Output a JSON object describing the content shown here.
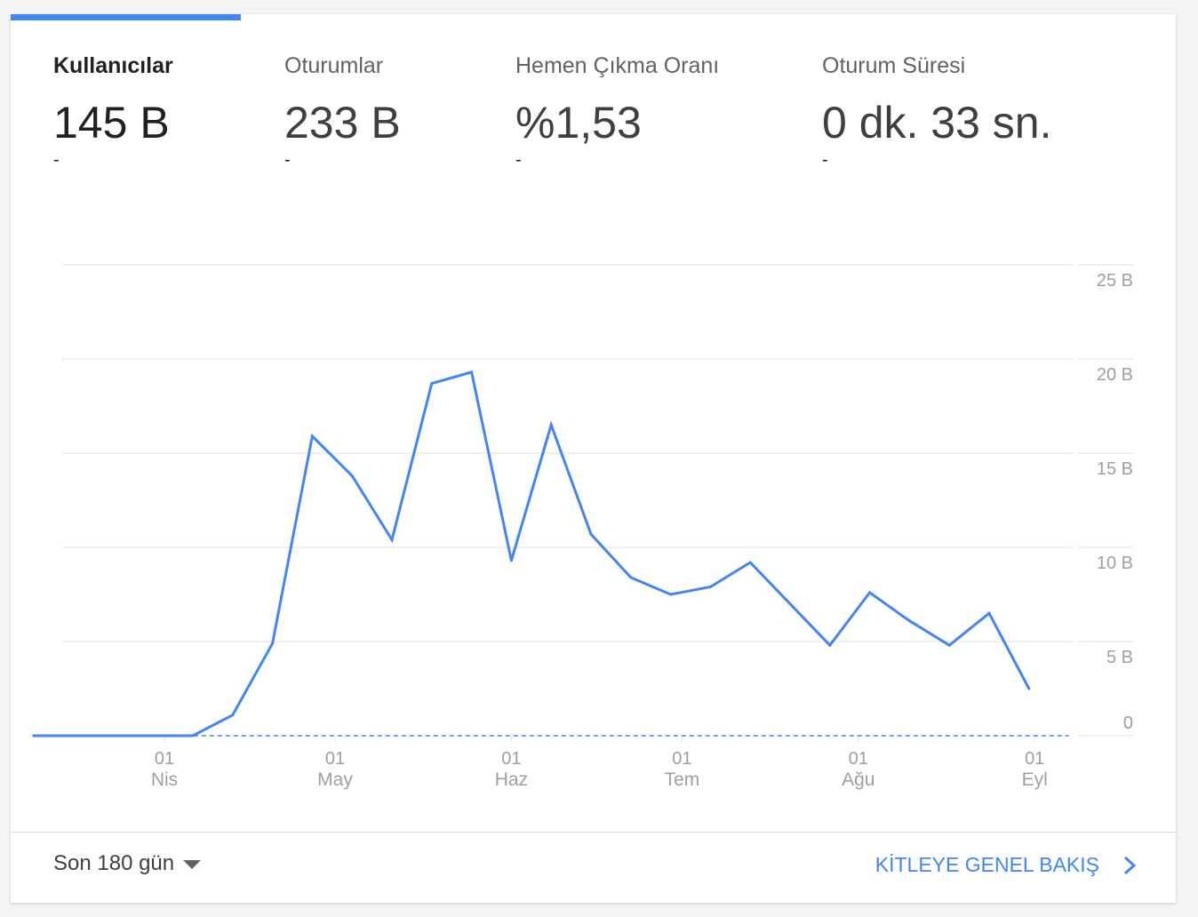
{
  "metrics": [
    {
      "label": "Kullanıcılar",
      "value": "145 B",
      "change": "-"
    },
    {
      "label": "Oturumlar",
      "value": "233 B",
      "change": "-"
    },
    {
      "label": "Hemen Çıkma Oranı",
      "value": "%1,53",
      "change": "-"
    },
    {
      "label": "Oturum Süresi",
      "value": "0 dk. 33 sn.",
      "change": "-"
    }
  ],
  "footer": {
    "date_range": "Son 180 gün",
    "report_link": "KİTLEYE GENEL BAKIŞ"
  },
  "icons": {
    "dropdown": "caret-down-icon",
    "link": "chevron-right-icon"
  },
  "colors": {
    "accent": "#4285f4",
    "line": "#4285f4",
    "grid": "#e0e0e0",
    "axis_text": "#9aa0a6"
  },
  "chart_data": {
    "type": "line",
    "x_axis": "date",
    "x_ticks": [
      {
        "date": "2020-04-01",
        "day": "01",
        "month": "Nis"
      },
      {
        "date": "2020-05-01",
        "day": "01",
        "month": "May"
      },
      {
        "date": "2020-06-01",
        "day": "01",
        "month": "Haz"
      },
      {
        "date": "2020-07-01",
        "day": "01",
        "month": "Tem"
      },
      {
        "date": "2020-08-01",
        "day": "01",
        "month": "Ağu"
      },
      {
        "date": "2020-09-01",
        "day": "01",
        "month": "Eyl"
      }
    ],
    "y_ticks": [
      {
        "value": 0,
        "label": "0"
      },
      {
        "value": 5000,
        "label": "5 B"
      },
      {
        "value": 10000,
        "label": "10 B"
      },
      {
        "value": 15000,
        "label": "15 B"
      },
      {
        "value": 20000,
        "label": "20 B"
      },
      {
        "value": 25000,
        "label": "25 B"
      }
    ],
    "ylim": [
      0,
      25000
    ],
    "grid": true,
    "series": [
      {
        "x": [
          "2020-03-09",
          "2020-03-16",
          "2020-03-23",
          "2020-03-30",
          "2020-04-06",
          "2020-04-13",
          "2020-04-20",
          "2020-04-27",
          "2020-05-04",
          "2020-05-11",
          "2020-05-18",
          "2020-05-25",
          "2020-06-01",
          "2020-06-08",
          "2020-06-15",
          "2020-06-22",
          "2020-06-29",
          "2020-07-06",
          "2020-07-13",
          "2020-07-20",
          "2020-07-27",
          "2020-08-03",
          "2020-08-10",
          "2020-08-17",
          "2020-08-24",
          "2020-08-31",
          "2020-09-07"
        ],
        "values": [
          0,
          0,
          0,
          0,
          0,
          1100,
          4900,
          15900,
          13800,
          10400,
          18700,
          19300,
          9300,
          16500,
          10700,
          8400,
          7500,
          7900,
          9200,
          7000,
          4800,
          7600,
          6100,
          4800,
          6500,
          2500,
          null
        ]
      },
      {
        "style": "dashed",
        "x": [
          "2020-03-09",
          "2020-09-07"
        ],
        "values": [
          0,
          0
        ]
      }
    ]
  }
}
